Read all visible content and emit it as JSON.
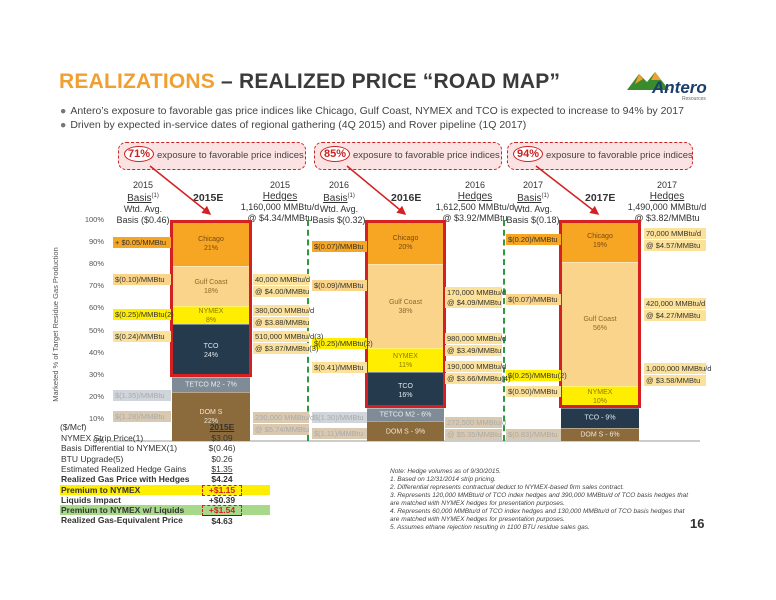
{
  "title": {
    "accent": "REALIZATIONS",
    "rest": " – REALIZED PRICE “ROAD MAP”"
  },
  "logo": {
    "name": "Antero",
    "sub": "Resources"
  },
  "bullets": [
    "Antero’s exposure to favorable gas price indices like Chicago, Gulf Coast, NYMEX and TCO is expected to increase to 94% by 2017",
    "Driven by expected in-service dates of regional gathering (4Q 2015) and Rover pipeline (1Q 2017)"
  ],
  "exposures": [
    {
      "pct": "71%",
      "text": "exposure to favorable price indices"
    },
    {
      "pct": "85%",
      "text": "exposure to favorable price indices"
    },
    {
      "pct": "94%",
      "text": "exposure to favorable price indices"
    }
  ],
  "col_heads": {
    "b2015": {
      "year": "2015",
      "name": "Basis",
      "sup": "(1)",
      "l1": "Wtd. Avg.",
      "l2": "Basis ($0.46)"
    },
    "e2015": "2015E",
    "h2015": {
      "year": "2015",
      "name": "Hedges",
      "l1": "1,160,000 MMBtu/d",
      "l2": "@ $4.34/MMBtu"
    },
    "b2016": {
      "year": "2016",
      "name": "Basis",
      "sup": "(1)",
      "l1": "Wtd. Avg.",
      "l2": "Basis $(0.32)"
    },
    "e2016": "2016E",
    "h2016": {
      "year": "2016",
      "name": "Hedges",
      "l1": "1,612,500 MMBtu/d",
      "l2": "@ $3.92/MMBtu"
    },
    "b2017": {
      "year": "2017",
      "name": "Basis",
      "sup": "(1)",
      "l1": "Wtd. Avg.",
      "l2": "Basis $(0.18)"
    },
    "e2017": "2017E",
    "h2017": {
      "year": "2017",
      "name": "Hedges",
      "l1": "1,490,000 MMBtu/d",
      "l2": "@ $3.82/MMBtu"
    }
  },
  "y_axis": {
    "title": "Marketed % of Target Residue Gas Production",
    "ticks": [
      "100%",
      "90%",
      "80%",
      "70%",
      "60%",
      "50%",
      "40%",
      "30%",
      "20%",
      "10%",
      "0%"
    ]
  },
  "colors": {
    "chicago": "#f6a623",
    "gulf": "#fad48a",
    "nymex": "#ffee00",
    "tco": "#253a4c",
    "tetco": "#7f8c97",
    "dom": "#8b6a3c",
    "hedge": "#fbe199",
    "red": "#d42020",
    "green": "#2e9a3e"
  },
  "chart_data": {
    "type": "bar",
    "stacked": true,
    "ylim": [
      0,
      100
    ],
    "categories": [
      "2015E",
      "2016E",
      "2017E"
    ],
    "series": [
      {
        "name": "DOM S",
        "values": [
          22,
          9,
          6
        ]
      },
      {
        "name": "TETCO M2",
        "values": [
          7,
          6,
          0
        ]
      },
      {
        "name": "TCO",
        "values": [
          24,
          16,
          9
        ]
      },
      {
        "name": "NYMEX",
        "values": [
          8,
          11,
          10
        ]
      },
      {
        "name": "Gulf Coast",
        "values": [
          18,
          38,
          56
        ]
      },
      {
        "name": "Chicago",
        "values": [
          21,
          20,
          19
        ]
      }
    ]
  },
  "segment_labels": {
    "y2015": {
      "chicago": [
        "Chicago",
        "21%"
      ],
      "gulf": [
        "Gulf Coast",
        "18%"
      ],
      "nymex": [
        "NYMEX",
        "8%"
      ],
      "tco": [
        "TCO",
        "24%"
      ],
      "tetco": [
        "TETCO M2 - 7%"
      ],
      "dom": [
        "DOM S",
        "22%"
      ]
    },
    "y2016": {
      "chicago": [
        "Chicago",
        "20%"
      ],
      "gulf": [
        "Gulf Coast",
        "38%"
      ],
      "nymex": [
        "NYMEX",
        "11%"
      ],
      "tco": [
        "TCO",
        "16%"
      ],
      "tetco": [
        "TETCO M2 - 6%"
      ],
      "dom": [
        "DOM S - 9%"
      ]
    },
    "y2017": {
      "chicago": [
        "Chicago",
        "19%"
      ],
      "gulf": [
        "Gulf Coast",
        "56%"
      ],
      "nymex": [
        "NYMEX",
        "10%"
      ],
      "tco": [
        "TCO - 9%"
      ],
      "dom": [
        "DOM S - 6%"
      ]
    }
  },
  "basis_labels": {
    "b2015": [
      "+ $0.05/MMBtu",
      "$(0.10)/MMBtu",
      "$(0.25)/MMBtu(2)",
      "$(0.24)/MMBtu",
      "$(1.35)/MMBtu",
      "$(1.28)/MMBtu"
    ],
    "b2016": [
      "$(0.07)/MMBtu",
      "$(0.09)/MMBtu",
      "$(0.25)/MMBtu(2)",
      "$(0.41)/MMBtu",
      "$(1.30)/MMBtu",
      "$(1.11)/MMBtu"
    ],
    "b2017": [
      "$(0.20)/MMBtu",
      "$(0.07)/MMBtu",
      "$(0.25)/MMBtu(2)",
      "$(0.50)/MMBtu",
      "$(0.83)/MMBtu"
    ]
  },
  "hedge_labels": {
    "h2015": [
      "40,000 MMBtu/d",
      "@ $4.00/MMBtu",
      "380,000 MMBtu/d",
      "@ $3.88/MMBtu",
      "510,000 MMBtu/d(3)",
      "@ $3.87/MMBtu(3)",
      "230,000 MMBtu/d",
      "@ $5.74/MMBtu"
    ],
    "h2016": [
      "170,000 MMBtu/d",
      "@ $4.09/MMBtu",
      "980,000 MMBtu/d",
      "@ $3.49/MMBtu",
      "190,000 MMBtu/d",
      "@ $3.66/MMBtu(4)",
      "272,500 MMBtu/d",
      "@ $5.35/MMBtu"
    ],
    "h2017": [
      "70,000 MMBtu/d",
      "@ $4.57/MMBtu",
      "420,000 MMBtu/d",
      "@ $4.27/MMBtu",
      "1,000,000 MMBtu/d",
      "@ $3.58/MMBtu"
    ]
  },
  "table": {
    "header": {
      "label": "($/Mcf)",
      "value": "2015E"
    },
    "rows": [
      {
        "label": "NYMEX Strip Price(1)",
        "value": "$3.09"
      },
      {
        "label": "Basis Differential to NYMEX(1)",
        "value": "$(0.46)"
      },
      {
        "label": "BTU Upgrade(5)",
        "value": "$0.26"
      },
      {
        "label": "Estimated Realized Hedge Gains",
        "value": "$1.35"
      },
      {
        "label": "Realized Gas Price with Hedges",
        "value": "$4.24"
      },
      {
        "label": "Premium to NYMEX",
        "value": "+$1.15"
      },
      {
        "label": "Liquids Impact",
        "value": "+$0.39"
      },
      {
        "label": "Premium to NYMEX w/ Liquids",
        "value": "+$1.54"
      },
      {
        "label": "Realized Gas-Equivalent Price",
        "value": "$4.63"
      }
    ]
  },
  "notes": [
    "Note: Hedge volumes as of 9/30/2015.",
    "1.  Based on 12/31/2014 strip pricing.",
    "2.  Differential represents contractual deduct to NYMEX-based firm sales contract.",
    "3.  Represents 120,000 MMBtu/d of TCO index hedges and 390,000 MMBtu/d of TCO basis hedges that are matched with NYMEX hedges for presentation purposes.",
    "4.  Represents 60,000 MMBtu/d of TCO index hedges and 130,000 MMBtu/d of TCO basis hedges that are matched with NYMEX hedges for presentation purposes.",
    "5.  Assumes ethane rejection resulting in 1100 BTU residue sales gas."
  ],
  "page_number": "16"
}
